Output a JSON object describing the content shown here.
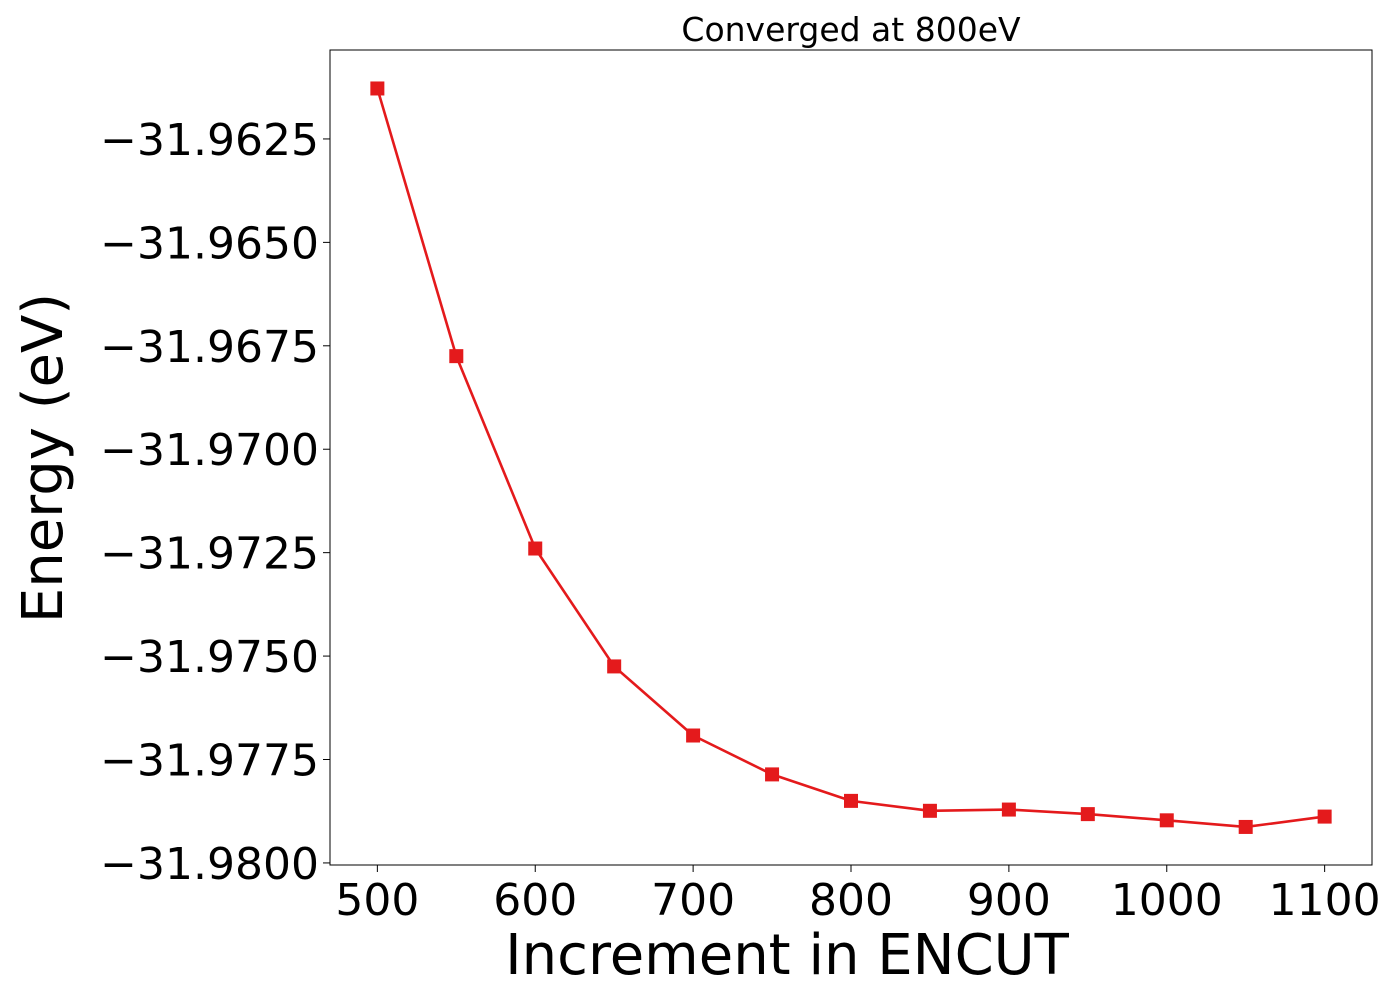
{
  "chart_data": {
    "type": "line",
    "title": "Converged at 800eV",
    "xlabel": "Increment in ENCUT",
    "ylabel": "Energy (eV)",
    "x": [
      500,
      550,
      600,
      650,
      700,
      750,
      800,
      850,
      900,
      950,
      1000,
      1050,
      1100
    ],
    "series": [
      {
        "values": [
          -31.96128,
          -31.96775,
          -31.9724,
          -31.97525,
          -31.97692,
          -31.97786,
          -31.9785,
          -31.97874,
          -31.97871,
          -31.97882,
          -31.97897,
          -31.97913,
          -31.97888
        ],
        "color": "#e41a1c",
        "marker": "square"
      }
    ],
    "xticks": [
      500,
      600,
      700,
      800,
      900,
      1000,
      1100
    ],
    "xtick_labels": [
      "500",
      "600",
      "700",
      "800",
      "900",
      "1000",
      "1100"
    ],
    "yticks": [
      -31.9625,
      -31.965,
      -31.9675,
      -31.97,
      -31.9725,
      -31.975,
      -31.9775,
      -31.98
    ],
    "ytick_labels": [
      "−31.9625",
      "−31.9650",
      "−31.9675",
      "−31.9700",
      "−31.9725",
      "−31.9750",
      "−31.9775",
      "−31.9800"
    ],
    "xlim": [
      470,
      1130
    ],
    "ylim": [
      -31.98005,
      -31.96035
    ],
    "grid": false,
    "legend": "none"
  }
}
